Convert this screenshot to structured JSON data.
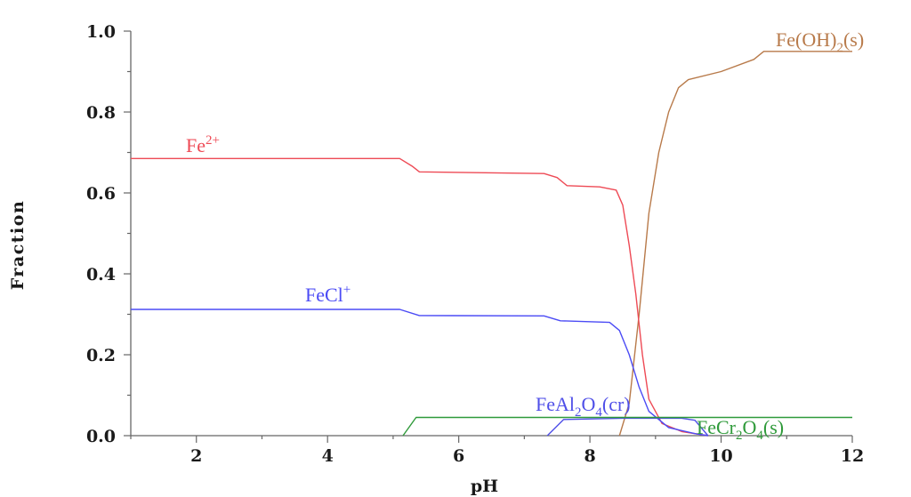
{
  "chart_data": {
    "type": "line",
    "title": "",
    "xlabel": "pH",
    "ylabel": "Fraction",
    "xlim": [
      1,
      12
    ],
    "ylim": [
      0,
      1
    ],
    "grid": false,
    "legend": "none",
    "x_ticks": [
      {
        "value": 2,
        "label": "2"
      },
      {
        "value": 4,
        "label": "4"
      },
      {
        "value": 6,
        "label": "6"
      },
      {
        "value": 8,
        "label": "8"
      },
      {
        "value": 10,
        "label": "10"
      },
      {
        "value": 12,
        "label": "12"
      }
    ],
    "y_ticks": [
      {
        "value": 0.0,
        "label": "0.0"
      },
      {
        "value": 0.2,
        "label": "0.2"
      },
      {
        "value": 0.4,
        "label": "0.4"
      },
      {
        "value": 0.6,
        "label": "0.6"
      },
      {
        "value": 0.8,
        "label": "0.8"
      },
      {
        "value": 1.0,
        "label": "1.0"
      }
    ],
    "series": [
      {
        "name": "Fe(OH)2(s)",
        "label_parts": [
          [
            "Fe(OH)",
            "n"
          ],
          [
            "2",
            "sub"
          ],
          [
            "(s)",
            "n"
          ]
        ],
        "color": "#b87a4a",
        "points": [
          [
            8.45,
            0.0
          ],
          [
            8.6,
            0.08
          ],
          [
            8.75,
            0.3
          ],
          [
            8.9,
            0.55
          ],
          [
            9.05,
            0.7
          ],
          [
            9.2,
            0.8
          ],
          [
            9.35,
            0.86
          ],
          [
            9.5,
            0.88
          ],
          [
            10.0,
            0.9
          ],
          [
            10.5,
            0.93
          ],
          [
            10.65,
            0.95
          ],
          [
            12.0,
            0.95
          ]
        ]
      },
      {
        "name": "Fe2+",
        "label_parts": [
          [
            "Fe",
            "n"
          ],
          [
            "2+",
            "sup"
          ]
        ],
        "color": "#ee4a55",
        "points": [
          [
            1.0,
            0.685
          ],
          [
            5.1,
            0.685
          ],
          [
            5.3,
            0.665
          ],
          [
            5.4,
            0.652
          ],
          [
            7.3,
            0.648
          ],
          [
            7.5,
            0.638
          ],
          [
            7.65,
            0.618
          ],
          [
            8.15,
            0.615
          ],
          [
            8.4,
            0.607
          ],
          [
            8.5,
            0.57
          ],
          [
            8.6,
            0.47
          ],
          [
            8.7,
            0.35
          ],
          [
            8.8,
            0.2
          ],
          [
            8.9,
            0.09
          ],
          [
            9.1,
            0.03
          ],
          [
            9.4,
            0.01
          ],
          [
            9.8,
            0.0
          ]
        ]
      },
      {
        "name": "FeCl+",
        "label_parts": [
          [
            "FeCl",
            "n"
          ],
          [
            "+",
            "sup"
          ]
        ],
        "color": "#4b4bf5",
        "points": [
          [
            1.0,
            0.312
          ],
          [
            5.1,
            0.312
          ],
          [
            5.4,
            0.297
          ],
          [
            7.3,
            0.296
          ],
          [
            7.55,
            0.284
          ],
          [
            8.3,
            0.28
          ],
          [
            8.45,
            0.26
          ],
          [
            8.6,
            0.2
          ],
          [
            8.75,
            0.12
          ],
          [
            8.9,
            0.06
          ],
          [
            9.2,
            0.02
          ],
          [
            9.6,
            0.005
          ],
          [
            9.8,
            0.0
          ]
        ]
      },
      {
        "name": "FeAl2O4(cr)",
        "label_parts": [
          [
            "FeAl",
            "n"
          ],
          [
            "2",
            "sub"
          ],
          [
            "O",
            "n"
          ],
          [
            "4",
            "sub"
          ],
          [
            "(cr)",
            "n"
          ]
        ],
        "color": "#4f4fe8",
        "points": [
          [
            7.35,
            0.0
          ],
          [
            7.6,
            0.04
          ],
          [
            8.5,
            0.043
          ],
          [
            9.4,
            0.043
          ],
          [
            9.6,
            0.038
          ],
          [
            9.8,
            0.0
          ]
        ]
      },
      {
        "name": "FeCr2O4(s)",
        "label_parts": [
          [
            "FeCr",
            "n"
          ],
          [
            "2",
            "sub"
          ],
          [
            "O",
            "n"
          ],
          [
            "4",
            "sub"
          ],
          [
            "(s)",
            "n"
          ]
        ],
        "color": "#2f9a3a",
        "points": [
          [
            5.15,
            0.0
          ],
          [
            5.35,
            0.045
          ],
          [
            12.0,
            0.045
          ]
        ]
      }
    ]
  }
}
